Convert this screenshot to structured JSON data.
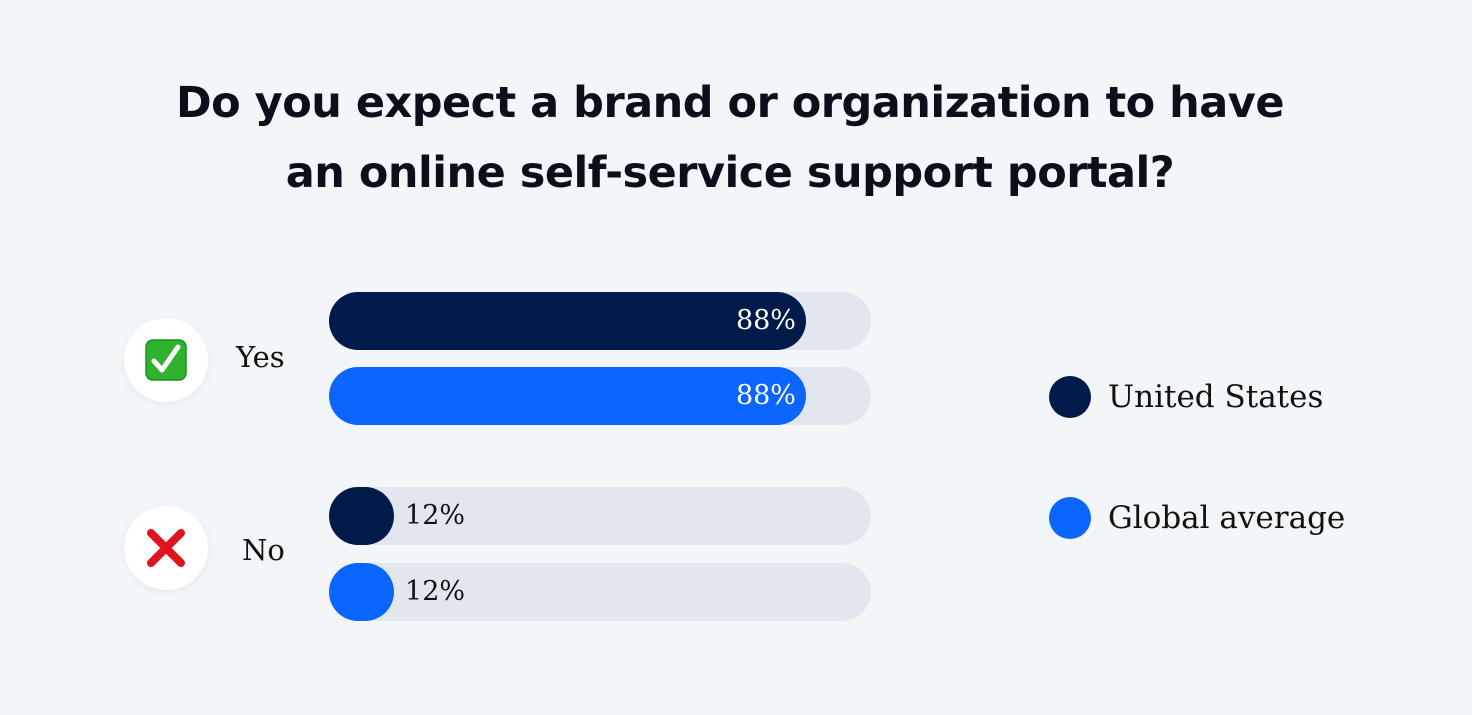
{
  "chart_data": {
    "type": "bar",
    "orientation": "horizontal",
    "title": "Do you expect a brand or organization to have an online self-service support portal?",
    "title_lines": [
      "Do you expect a brand or organization to have",
      "an online self-service support portal?"
    ],
    "categories": [
      "Yes",
      "No"
    ],
    "category_icons": [
      "check-mark-icon",
      "cross-mark-icon"
    ],
    "series": [
      {
        "name": "United States",
        "color": "#001a4a",
        "values": [
          88,
          12
        ],
        "labels": [
          "88%",
          "12%"
        ]
      },
      {
        "name": "Global average",
        "color": "#0a66ff",
        "values": [
          88,
          12
        ],
        "labels": [
          "88%",
          "12%"
        ]
      }
    ],
    "xlim": [
      0,
      100
    ],
    "unit": "%",
    "grid": false,
    "legend_position": "right",
    "track_color": "#e2e7ef",
    "background": "#f3f6f9"
  }
}
